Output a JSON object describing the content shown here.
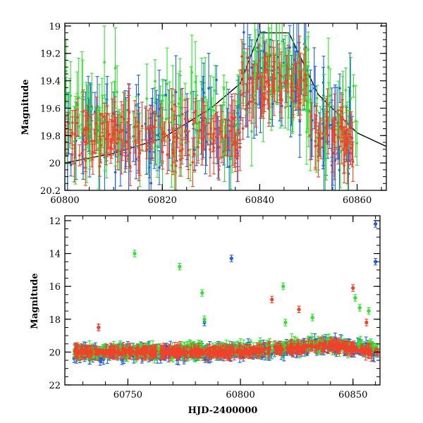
{
  "chart_data": [
    {
      "type": "scatter",
      "panel": "top",
      "xlabel": "",
      "ylabel": "Magnitude",
      "xlim": [
        60800,
        60866
      ],
      "ylim": [
        20.2,
        18.98
      ],
      "y_inverted": true,
      "x_ticks": [
        60800,
        60820,
        60840,
        60860
      ],
      "y_ticks": [
        19,
        19.2,
        19.4,
        19.6,
        19.8,
        20,
        20.2
      ],
      "x_tick_labels": [
        "60800",
        "60820",
        "60840",
        "60860"
      ],
      "y_tick_labels": [
        "19",
        "19.2",
        "19.4",
        "19.6",
        "19.8",
        "20",
        "20.2"
      ],
      "series": [
        {
          "color": "#1f5fe0",
          "x_range": [
            60800,
            60860
          ],
          "y_center": 19.75,
          "y_spread": 0.55,
          "yerr": [
            0.08,
            0.3
          ]
        },
        {
          "color": "#33e033",
          "x_range": [
            60800,
            60860
          ],
          "y_center": 19.7,
          "y_spread": 0.6,
          "yerr": [
            0.08,
            0.3
          ]
        },
        {
          "color": "#f0422a",
          "x_range": [
            60800,
            60860
          ],
          "y_center": 19.8,
          "y_spread": 0.35,
          "yerr": [
            0.05,
            0.2
          ]
        }
      ],
      "model_curve": {
        "color": "#000000",
        "x": [
          60800,
          60810,
          60820,
          60830,
          60836,
          60840,
          60846,
          60852,
          60860,
          60866
        ],
        "y": [
          20.0,
          19.93,
          19.82,
          19.6,
          19.42,
          19.05,
          19.05,
          19.5,
          19.78,
          19.88
        ]
      }
    },
    {
      "type": "scatter",
      "panel": "bottom",
      "xlabel": "HJD-2400000",
      "ylabel": "Magnitude",
      "xlim": [
        60722,
        60862
      ],
      "ylim": [
        22,
        11.7
      ],
      "y_inverted": true,
      "x_ticks": [
        60750,
        60800,
        60850
      ],
      "y_ticks": [
        12,
        14,
        16,
        18,
        20,
        22
      ],
      "x_tick_labels": [
        "60750",
        "60800",
        "60850"
      ],
      "y_tick_labels": [
        "12",
        "14",
        "16",
        "18",
        "20",
        "22"
      ],
      "series": [
        {
          "color": "#1f5fe0",
          "baseline": [
            [
              60726,
              20.1
            ],
            [
              60800,
              20.0
            ],
            [
              60840,
              19.6
            ],
            [
              60860,
              19.9
            ]
          ],
          "scatter": 0.6,
          "outliers": [
            {
              "x": 60796,
              "y": 14.3
            },
            {
              "x": 60860,
              "y": 12.2
            },
            {
              "x": 60860,
              "y": 14.5
            },
            {
              "x": 60784,
              "y": 18.2
            },
            {
              "x": 60737,
              "y": 18.5
            }
          ]
        },
        {
          "color": "#33e033",
          "baseline": [
            [
              60726,
              20.0
            ],
            [
              60800,
              19.9
            ],
            [
              60840,
              19.5
            ],
            [
              60860,
              19.8
            ]
          ],
          "scatter": 0.5,
          "outliers": [
            {
              "x": 60753,
              "y": 14.0
            },
            {
              "x": 60773,
              "y": 14.8
            },
            {
              "x": 60783,
              "y": 16.4
            },
            {
              "x": 60819,
              "y": 16.0
            },
            {
              "x": 60851,
              "y": 16.7
            },
            {
              "x": 60853,
              "y": 17.3
            },
            {
              "x": 60857,
              "y": 17.5
            },
            {
              "x": 60784,
              "y": 18.0
            },
            {
              "x": 60820,
              "y": 18.2
            },
            {
              "x": 60832,
              "y": 17.9
            }
          ]
        },
        {
          "color": "#f0422a",
          "baseline": [
            [
              60726,
              20.0
            ],
            [
              60800,
              20.0
            ],
            [
              60840,
              19.6
            ],
            [
              60860,
              20.0
            ]
          ],
          "scatter": 0.3,
          "outliers": [
            {
              "x": 60814,
              "y": 16.8
            },
            {
              "x": 60850,
              "y": 16.1
            },
            {
              "x": 60826,
              "y": 17.4
            },
            {
              "x": 60737,
              "y": 18.5
            },
            {
              "x": 60856,
              "y": 18.2
            }
          ]
        }
      ]
    }
  ]
}
